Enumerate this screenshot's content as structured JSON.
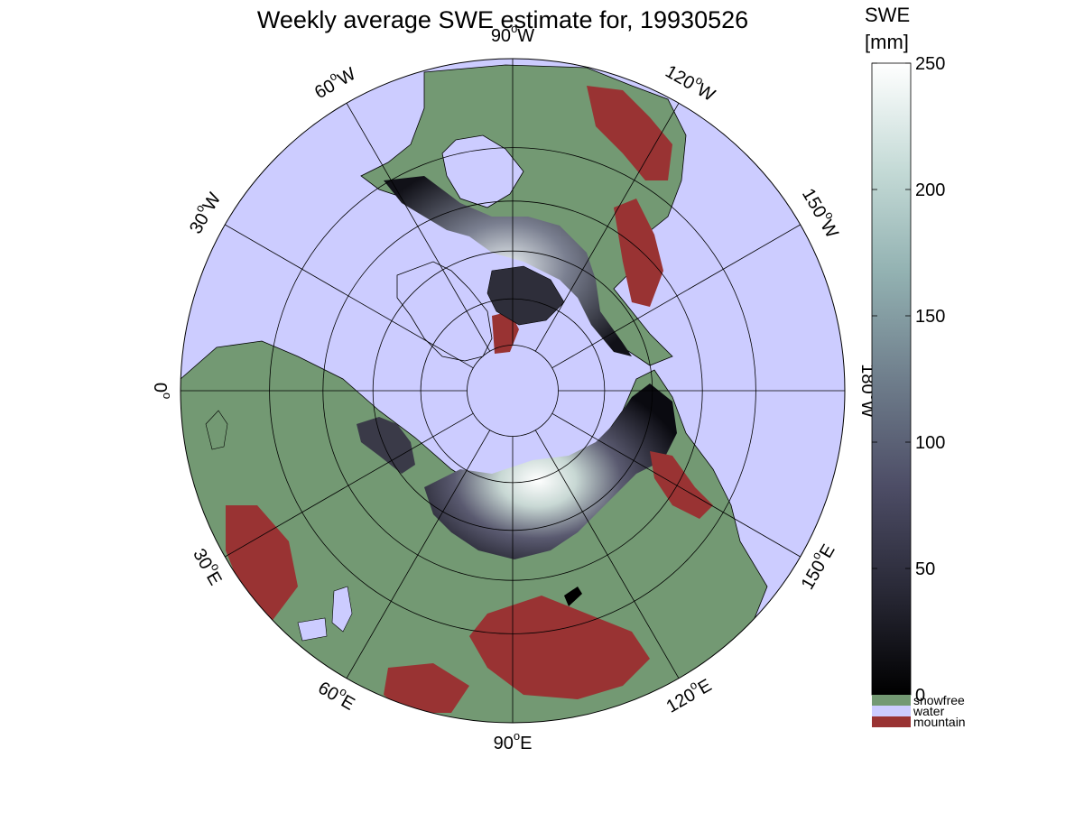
{
  "title": "Weekly average SWE estimate for, 19930526",
  "map": {
    "projection": "north-polar-stereographic",
    "min_latitude": 25,
    "graticule_latitudes": [
      40,
      50,
      60,
      70,
      80
    ],
    "graticule_longitude_step": 30,
    "longitude_labels": [
      {
        "text": "90",
        "dir": "W"
      },
      {
        "text": "120",
        "dir": "W"
      },
      {
        "text": "150",
        "dir": "W"
      },
      {
        "text": "180",
        "dir": "W"
      },
      {
        "text": "150",
        "dir": "E"
      },
      {
        "text": "120",
        "dir": "E"
      },
      {
        "text": "90",
        "dir": "E"
      },
      {
        "text": "60",
        "dir": "E"
      },
      {
        "text": "30",
        "dir": "E"
      },
      {
        "text": "0",
        "dir": ""
      },
      {
        "text": "30",
        "dir": "W"
      },
      {
        "text": "60",
        "dir": "W"
      }
    ],
    "colors": {
      "water": "#ccccff",
      "snowfree": "#739973",
      "mountain": "#993333",
      "coast": "#000000"
    }
  },
  "colorbar": {
    "title_line1": "SWE",
    "title_line2": "[mm]",
    "range": [
      0,
      250
    ],
    "ticks": [
      "0",
      "50",
      "100",
      "150",
      "200",
      "250"
    ],
    "tick_values": [
      0,
      50,
      100,
      150,
      200,
      250
    ],
    "gradient_colors": [
      "#000000",
      "#2a2a38",
      "#4d4d66",
      "#6f7e8c",
      "#93b2b2",
      "#c4dad6",
      "#ffffff"
    ],
    "categories": [
      {
        "label": "snowfree",
        "color": "#739973"
      },
      {
        "label": "water",
        "color": "#ccccff"
      },
      {
        "label": "mountain",
        "color": "#993333"
      }
    ]
  }
}
